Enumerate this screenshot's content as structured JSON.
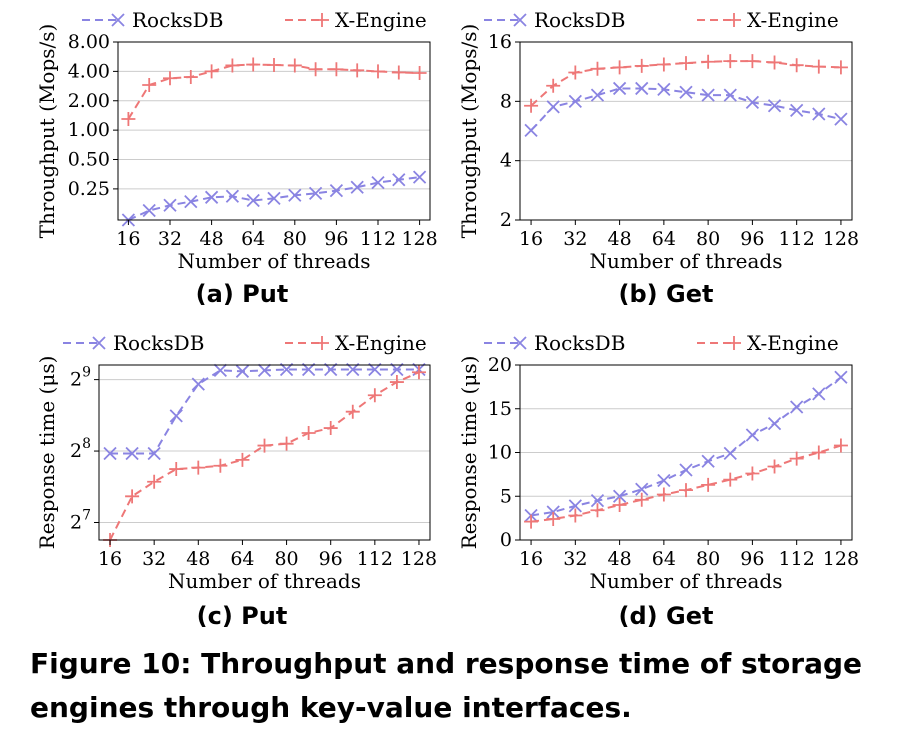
{
  "caption": "Figure 10: Throughput and response time of storage engines through key-value interfaces.",
  "colors": {
    "rocksdb": "#8a84e2",
    "xengine": "#ee7777",
    "grid": "#cccccc"
  },
  "chart_data": [
    {
      "type": "line",
      "subtitle": "(a) Put",
      "xlabel": "Number of threads",
      "ylabel": "Throughput (Mops/s)",
      "yscale": "log",
      "xlim": [
        12,
        132
      ],
      "ylim": [
        0.12,
        8.0
      ],
      "xticks": [
        16,
        32,
        48,
        64,
        80,
        96,
        112,
        128
      ],
      "xtick_labels": [
        "16",
        "32",
        "48",
        "64",
        "80",
        "96",
        "112",
        "128"
      ],
      "yticks": [
        0.25,
        0.5,
        1.0,
        2.0,
        4.0,
        8.0
      ],
      "ytick_labels": [
        "0.25",
        "0.50",
        "1.00",
        "2.00",
        "4.00",
        "8.00"
      ],
      "grid": true,
      "legend": "top",
      "x": [
        16,
        24,
        32,
        40,
        48,
        56,
        64,
        72,
        80,
        88,
        96,
        104,
        112,
        120,
        128
      ],
      "series": [
        {
          "name": "RocksDB",
          "values": [
            0.12,
            0.15,
            0.17,
            0.185,
            0.205,
            0.21,
            0.19,
            0.2,
            0.215,
            0.225,
            0.24,
            0.26,
            0.29,
            0.31,
            0.33
          ]
        },
        {
          "name": "X-Engine",
          "values": [
            1.3,
            2.9,
            3.4,
            3.5,
            4.0,
            4.6,
            4.7,
            4.65,
            4.6,
            4.2,
            4.2,
            4.1,
            4.0,
            3.9,
            3.85
          ]
        }
      ]
    },
    {
      "type": "line",
      "subtitle": "(b) Get",
      "xlabel": "Number of threads",
      "ylabel": "Throughput (Mops/s)",
      "yscale": "log",
      "xlim": [
        12,
        132
      ],
      "ylim": [
        2,
        16
      ],
      "xticks": [
        16,
        32,
        48,
        64,
        80,
        96,
        112,
        128
      ],
      "xtick_labels": [
        "16",
        "32",
        "48",
        "64",
        "80",
        "96",
        "112",
        "128"
      ],
      "yticks": [
        2,
        4,
        8,
        16
      ],
      "ytick_labels": [
        "2",
        "4",
        "8",
        "16"
      ],
      "grid": true,
      "legend": "top",
      "x": [
        16,
        24,
        32,
        40,
        48,
        56,
        64,
        72,
        80,
        88,
        96,
        104,
        112,
        120,
        128
      ],
      "series": [
        {
          "name": "RocksDB",
          "values": [
            5.7,
            7.5,
            8.0,
            8.6,
            9.3,
            9.3,
            9.2,
            8.9,
            8.6,
            8.6,
            7.9,
            7.6,
            7.2,
            6.9,
            6.5
          ]
        },
        {
          "name": "X-Engine",
          "values": [
            7.6,
            9.6,
            11.2,
            11.7,
            11.9,
            12.1,
            12.3,
            12.5,
            12.7,
            12.8,
            12.8,
            12.6,
            12.2,
            12.0,
            11.9
          ]
        }
      ]
    },
    {
      "type": "line",
      "subtitle": "(c) Put",
      "xlabel": "Number of threads",
      "ylabel": "Response time (μs)",
      "yscale": "log2",
      "xlim": [
        12,
        132
      ],
      "ylim": [
        108,
        590
      ],
      "xticks": [
        16,
        32,
        48,
        64,
        80,
        96,
        112,
        128
      ],
      "xtick_labels": [
        "16",
        "32",
        "48",
        "64",
        "80",
        "96",
        "112",
        "128"
      ],
      "yticks": [
        128,
        256,
        512
      ],
      "ytick_bases": [
        "2",
        "2",
        "2"
      ],
      "ytick_exps": [
        "7",
        "8",
        "9"
      ],
      "grid": true,
      "legend": "top",
      "x": [
        16,
        24,
        32,
        40,
        48,
        56,
        64,
        72,
        80,
        88,
        96,
        104,
        112,
        120,
        128
      ],
      "series": [
        {
          "name": "RocksDB",
          "values": [
            250,
            250,
            250,
            360,
            490,
            560,
            555,
            560,
            565,
            565,
            565,
            565,
            565,
            565,
            565
          ]
        },
        {
          "name": "X-Engine",
          "values": [
            108,
            165,
            190,
            215,
            218,
            222,
            235,
            270,
            275,
            305,
            320,
            375,
            440,
            500,
            550
          ]
        }
      ]
    },
    {
      "type": "line",
      "subtitle": "(d) Get",
      "xlabel": "Number of threads",
      "ylabel": "Response time (μs)",
      "yscale": "linear",
      "xlim": [
        12,
        132
      ],
      "ylim": [
        0,
        20
      ],
      "xticks": [
        16,
        32,
        48,
        64,
        80,
        96,
        112,
        128
      ],
      "xtick_labels": [
        "16",
        "32",
        "48",
        "64",
        "80",
        "96",
        "112",
        "128"
      ],
      "yticks": [
        0,
        5,
        10,
        15,
        20
      ],
      "ytick_labels": [
        "0",
        "5",
        "10",
        "15",
        "20"
      ],
      "grid": true,
      "legend": "top",
      "x": [
        16,
        24,
        32,
        40,
        48,
        56,
        64,
        72,
        80,
        88,
        96,
        104,
        112,
        120,
        128
      ],
      "series": [
        {
          "name": "RocksDB",
          "values": [
            2.8,
            3.2,
            3.9,
            4.5,
            5.0,
            5.8,
            6.8,
            8.0,
            9.0,
            9.9,
            12.0,
            13.3,
            15.2,
            16.7,
            18.6
          ]
        },
        {
          "name": "X-Engine",
          "values": [
            2.1,
            2.4,
            2.8,
            3.4,
            4.0,
            4.6,
            5.2,
            5.7,
            6.3,
            6.9,
            7.6,
            8.4,
            9.3,
            10.0,
            10.8
          ]
        }
      ]
    }
  ]
}
